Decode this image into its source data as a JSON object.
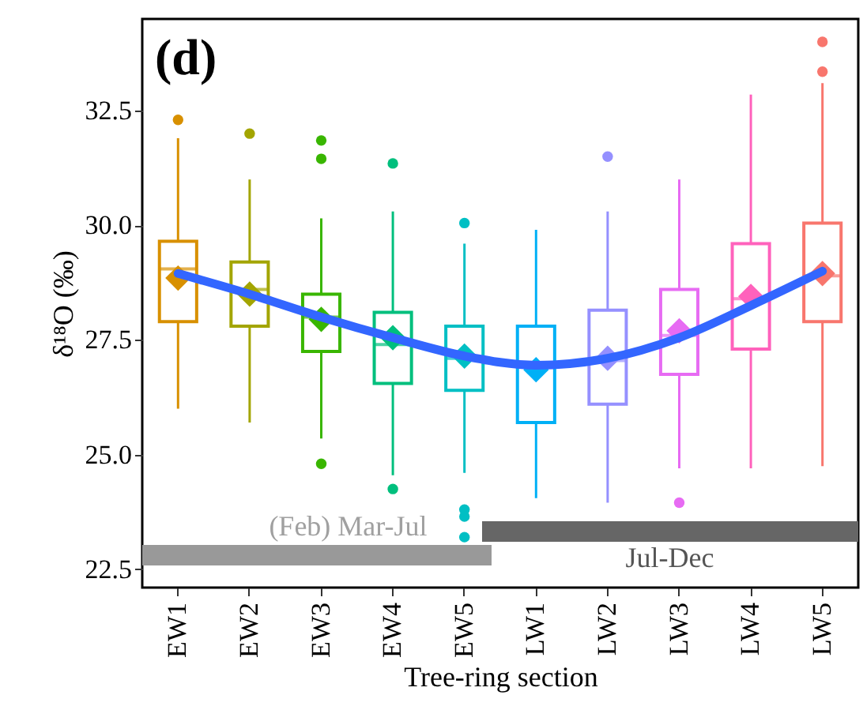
{
  "chart_data": {
    "type": "box",
    "ylabel": "δ¹⁸O (‰)",
    "xlabel": "Tree-ring section",
    "annotations": [
      "(d)",
      "(Feb) Mar-Jul",
      "Jul-Dec"
    ],
    "categories": [
      "EW1",
      "EW2",
      "EW3",
      "EW4",
      "EW5",
      "LW1",
      "LW2",
      "LW3",
      "LW4",
      "LW5"
    ],
    "colors": [
      "#d89000",
      "#a3a500",
      "#39b600",
      "#00bf7d",
      "#00bfc4",
      "#00b0f6",
      "#9590ff",
      "#e76bf3",
      "#ff62bc",
      "#f8766d"
    ],
    "boxes": [
      {
        "low": 26.0,
        "q1": 27.9,
        "median": 29.05,
        "q3": 29.65,
        "high": 31.9,
        "mean": 28.85,
        "outliers": [
          32.3
        ]
      },
      {
        "low": 25.7,
        "q1": 27.8,
        "median": 28.6,
        "q3": 29.2,
        "high": 31.0,
        "mean": 28.5,
        "outliers": [
          32.0
        ]
      },
      {
        "low": 25.35,
        "q1": 27.25,
        "median": 28.0,
        "q3": 28.5,
        "high": 30.15,
        "mean": 27.95,
        "outliers": [
          31.85,
          31.45,
          24.8
        ]
      },
      {
        "low": 24.55,
        "q1": 26.55,
        "median": 27.4,
        "q3": 28.1,
        "high": 30.3,
        "mean": 27.55,
        "outliers": [
          31.35,
          24.25
        ]
      },
      {
        "low": 24.6,
        "q1": 26.4,
        "median": 27.1,
        "q3": 27.8,
        "high": 29.6,
        "mean": 27.15,
        "outliers": [
          30.05,
          23.8,
          23.65,
          23.2
        ]
      },
      {
        "low": 24.05,
        "q1": 25.7,
        "median": 27.0,
        "q3": 27.8,
        "high": 29.9,
        "mean": 26.85
      },
      {
        "low": 23.95,
        "q1": 26.1,
        "median": 27.05,
        "q3": 28.15,
        "high": 30.3,
        "mean": 27.1,
        "outliers": [
          31.5
        ]
      },
      {
        "low": 24.7,
        "q1": 26.75,
        "median": 27.6,
        "q3": 28.6,
        "high": 31.0,
        "mean": 27.7,
        "outliers": [
          23.95
        ]
      },
      {
        "low": 24.7,
        "q1": 27.3,
        "median": 28.4,
        "q3": 29.6,
        "high": 32.85,
        "mean": 28.45
      },
      {
        "low": 24.75,
        "q1": 27.9,
        "median": 28.9,
        "q3": 30.05,
        "high": 33.1,
        "mean": 28.95,
        "outliers": [
          34.0,
          33.35
        ]
      }
    ],
    "series": [
      {
        "type": "line",
        "color": "#3366ff",
        "x": [
          "EW1",
          "EW2",
          "EW3",
          "EW4",
          "EW5",
          "LW1",
          "LW2",
          "LW3",
          "LW4",
          "LW5"
        ],
        "values": [
          28.95,
          28.5,
          28.0,
          27.55,
          27.15,
          26.95,
          27.1,
          27.55,
          28.25,
          29.0
        ]
      }
    ],
    "ylim": [
      22.1,
      34.5
    ],
    "yticks": [
      {
        "value": 22.5,
        "label": "22.5"
      },
      {
        "value": 25,
        "label": "25.0"
      },
      {
        "value": 27.5,
        "label": "27.5"
      },
      {
        "value": 30,
        "label": "30.0"
      },
      {
        "value": 32.5,
        "label": "32.5"
      }
    ],
    "grid": false
  }
}
